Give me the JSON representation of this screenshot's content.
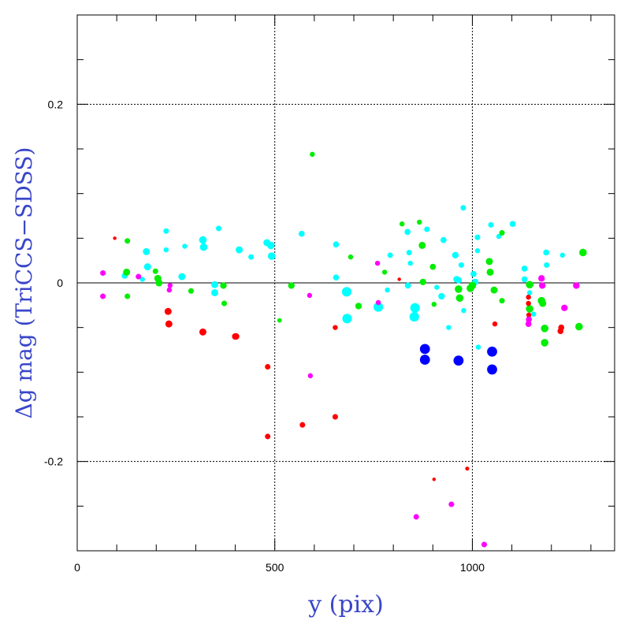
{
  "chart_data": {
    "type": "scatter",
    "title": "",
    "xlabel": "y (pix)",
    "ylabel": "Δg mag (TriCCS−SDSS)",
    "xlim": [
      0,
      1360
    ],
    "ylim": [
      -0.3,
      0.3
    ],
    "x_ticks": [
      {
        "value": 0,
        "label": "0"
      },
      {
        "value": 500,
        "label": "500"
      },
      {
        "value": 1000,
        "label": "1000"
      }
    ],
    "y_ticks": [
      {
        "value": 0.2,
        "label": "0.2"
      },
      {
        "value": 0,
        "label": "0"
      },
      {
        "value": -0.2,
        "label": "-0.2"
      }
    ],
    "colors": {
      "cyan": "#00ffff",
      "green": "#00ee00",
      "red": "#ff0000",
      "magenta": "#ff00ff",
      "blue": "#0000ff",
      "axis_title": "#3a46c8"
    },
    "series": [
      {
        "color_key": "cyan",
        "points": [
          [
            120,
            0.008,
            1.2
          ],
          [
            175,
            0.035,
            1.4
          ],
          [
            178,
            0.018,
            1.4
          ],
          [
            165,
            0.004,
            1.0
          ],
          [
            225,
            0.058,
            1.1
          ],
          [
            225,
            0.037,
            1.0
          ],
          [
            265,
            0.007,
            1.4
          ],
          [
            272,
            0.041,
            1.0
          ],
          [
            318,
            0.048,
            1.5
          ],
          [
            320,
            0.04,
            1.5
          ],
          [
            348,
            -0.002,
            1.4
          ],
          [
            348,
            -0.011,
            1.4
          ],
          [
            358,
            0.061,
            1.1
          ],
          [
            410,
            0.037,
            1.4
          ],
          [
            440,
            0.029,
            1.1
          ],
          [
            480,
            0.045,
            1.4
          ],
          [
            490,
            0.042,
            1.5
          ],
          [
            492,
            0.03,
            1.5
          ],
          [
            568,
            0.055,
            1.2
          ],
          [
            655,
            0.043,
            1.2
          ],
          [
            655,
            0.006,
            1.2
          ],
          [
            682,
            -0.01,
            1.9
          ],
          [
            683,
            -0.04,
            1.9
          ],
          [
            762,
            -0.027,
            1.9
          ],
          [
            785,
            -0.008,
            1.0
          ],
          [
            792,
            0.031,
            1.1
          ],
          [
            836,
            0.057,
            1.2
          ],
          [
            840,
            0.034,
            1.1
          ],
          [
            843,
            0.022,
            1.0
          ],
          [
            837,
            -0.003,
            1.2
          ],
          [
            855,
            -0.028,
            1.9
          ],
          [
            853,
            -0.038,
            1.9
          ],
          [
            885,
            0.06,
            1.1
          ],
          [
            910,
            -0.005,
            1.0
          ],
          [
            922,
            -0.015,
            1.3
          ],
          [
            927,
            0.048,
            1.2
          ],
          [
            940,
            -0.05,
            1.0
          ],
          [
            957,
            0.031,
            1.3
          ],
          [
            960,
            0.004,
            1.3
          ],
          [
            965,
            0.003,
            1.3
          ],
          [
            972,
            0.02,
            1.1
          ],
          [
            977,
            0.084,
            1.1
          ],
          [
            978,
            -0.031,
            1.0
          ],
          [
            1003,
            0.01,
            1.2
          ],
          [
            1007,
            0.001,
            1.3
          ],
          [
            1013,
            0.051,
            1.1
          ],
          [
            1015,
            -0.072,
            1.0
          ],
          [
            1013,
            0.036,
            1.0
          ],
          [
            1047,
            0.065,
            1.1
          ],
          [
            1067,
            0.052,
            1.0
          ],
          [
            1102,
            0.066,
            1.2
          ],
          [
            1132,
            0.016,
            1.2
          ],
          [
            1132,
            0.004,
            1.2
          ],
          [
            1145,
            -0.011,
            1.0
          ],
          [
            1155,
            -0.035,
            1.0
          ],
          [
            1187,
            0.034,
            1.2
          ],
          [
            1188,
            0.02,
            1.1
          ],
          [
            1228,
            0.031,
            1.0
          ]
        ]
      },
      {
        "color_key": "green",
        "points": [
          [
            125,
            0.012,
            1.4
          ],
          [
            127,
            -0.015,
            1.1
          ],
          [
            127,
            0.047,
            1.1
          ],
          [
            198,
            0.013,
            1.1
          ],
          [
            204,
            0.005,
            1.4
          ],
          [
            207,
            0.0,
            1.4
          ],
          [
            288,
            -0.009,
            1.1
          ],
          [
            370,
            -0.003,
            1.3
          ],
          [
            372,
            -0.023,
            1.1
          ],
          [
            512,
            -0.042,
            0.9
          ],
          [
            542,
            -0.003,
            1.3
          ],
          [
            595,
            0.144,
            1.0
          ],
          [
            692,
            0.029,
            1.0
          ],
          [
            712,
            -0.026,
            1.3
          ],
          [
            778,
            0.012,
            1.0
          ],
          [
            822,
            0.066,
            1.0
          ],
          [
            866,
            0.068,
            1.0
          ],
          [
            873,
            0.042,
            1.4
          ],
          [
            875,
            0.001,
            1.3
          ],
          [
            900,
            0.018,
            1.2
          ],
          [
            903,
            -0.024,
            1.0
          ],
          [
            965,
            -0.007,
            1.5
          ],
          [
            968,
            -0.017,
            1.5
          ],
          [
            995,
            -0.006,
            1.5
          ],
          [
            1000,
            -0.003,
            1.5
          ],
          [
            1043,
            0.024,
            1.4
          ],
          [
            1045,
            0.012,
            1.4
          ],
          [
            1055,
            -0.008,
            1.4
          ],
          [
            1075,
            0.056,
            1.1
          ],
          [
            1075,
            -0.02,
            1.1
          ],
          [
            1145,
            -0.002,
            1.5
          ],
          [
            1145,
            -0.029,
            1.5
          ],
          [
            1175,
            -0.02,
            1.5
          ],
          [
            1178,
            -0.023,
            1.4
          ],
          [
            1183,
            -0.051,
            1.5
          ],
          [
            1183,
            -0.067,
            1.5
          ],
          [
            1270,
            -0.049,
            1.5
          ],
          [
            1280,
            0.034,
            1.5
          ]
        ]
      },
      {
        "color_key": "red",
        "points": [
          [
            95,
            0.05,
            0.7
          ],
          [
            230,
            -0.032,
            1.4
          ],
          [
            232,
            -0.046,
            1.4
          ],
          [
            318,
            -0.055,
            1.4
          ],
          [
            400,
            -0.06,
            1.3
          ],
          [
            402,
            -0.06,
            1.3
          ],
          [
            482,
            -0.094,
            1.1
          ],
          [
            482,
            -0.172,
            1.1
          ],
          [
            570,
            -0.159,
            1.1
          ],
          [
            653,
            -0.05,
            1.0
          ],
          [
            653,
            -0.15,
            1.1
          ],
          [
            815,
            0.004,
            0.7
          ],
          [
            903,
            -0.22,
            0.7
          ],
          [
            987,
            -0.208,
            0.8
          ],
          [
            1057,
            -0.046,
            1.0
          ],
          [
            1142,
            -0.016,
            1.0
          ],
          [
            1142,
            -0.023,
            1.0
          ],
          [
            1143,
            -0.036,
            1.0
          ],
          [
            1223,
            -0.054,
            1.2
          ],
          [
            1225,
            -0.05,
            1.2
          ]
        ]
      },
      {
        "color_key": "magenta",
        "points": [
          [
            65,
            0.011,
            1.1
          ],
          [
            65,
            -0.015,
            1.1
          ],
          [
            155,
            0.007,
            1.1
          ],
          [
            233,
            -0.008,
            1.0
          ],
          [
            235,
            -0.003,
            1.0
          ],
          [
            588,
            -0.014,
            1.0
          ],
          [
            590,
            -0.104,
            1.0
          ],
          [
            760,
            0.022,
            1.0
          ],
          [
            762,
            -0.022,
            1.0
          ],
          [
            858,
            -0.262,
            1.1
          ],
          [
            947,
            -0.248,
            1.1
          ],
          [
            1030,
            -0.293,
            1.1
          ],
          [
            1143,
            -0.041,
            1.2
          ],
          [
            1142,
            -0.046,
            1.2
          ],
          [
            1175,
            0.005,
            1.3
          ],
          [
            1177,
            -0.003,
            1.3
          ],
          [
            1233,
            -0.028,
            1.3
          ],
          [
            1263,
            -0.003,
            1.3
          ]
        ]
      },
      {
        "color_key": "blue",
        "points": [
          [
            880,
            -0.074,
            2.0
          ],
          [
            880,
            -0.086,
            2.0
          ],
          [
            965,
            -0.087,
            2.0
          ],
          [
            1050,
            -0.077,
            2.0
          ],
          [
            1050,
            -0.097,
            2.0
          ]
        ]
      }
    ]
  }
}
